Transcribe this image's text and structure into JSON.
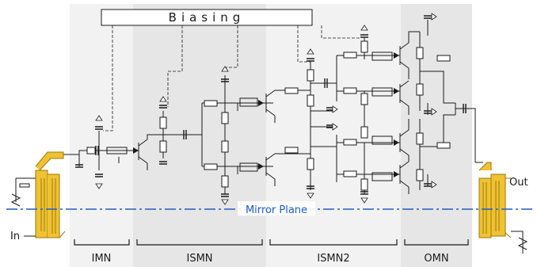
{
  "title": "Biasing",
  "mirror_label": "Mirror Plane",
  "port_in": "In",
  "port_out": "Out",
  "sections": [
    {
      "label": "IMN"
    },
    {
      "label": "ISMN"
    },
    {
      "label": "ISMN2"
    },
    {
      "label": "OMN"
    }
  ],
  "colors": {
    "band_light": "#f2f2f2",
    "band_dark": "#e6e6e6",
    "mirror": "#1f5fbf",
    "balun": "#f0c232",
    "balun_edge": "#9a7a10",
    "wire": "#1a1a1a"
  }
}
